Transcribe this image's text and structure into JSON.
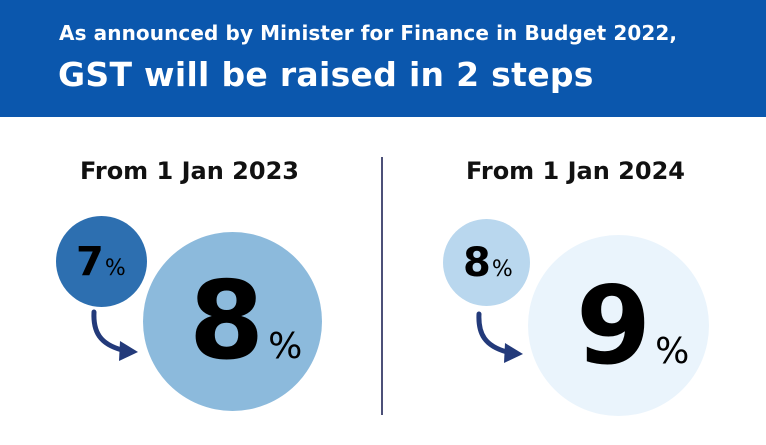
{
  "header": {
    "subtitle": "As announced by Minister for Finance in Budget 2022,",
    "title": "GST will be raised in 2 steps"
  },
  "steps": [
    {
      "label": "From 1 Jan 2023",
      "from_rate": "7",
      "to_rate": "8",
      "unit": "%"
    },
    {
      "label": "From 1 Jan 2024",
      "from_rate": "8",
      "to_rate": "9",
      "unit": "%"
    }
  ],
  "colors": {
    "header_bg": "#0b57ad",
    "step1_old_circle": "#2d6fb0",
    "step1_new_circle": "#8cbadc",
    "step2_old_circle": "#b9d7ee",
    "step2_new_circle": "#eaf4fc",
    "arrow": "#233a7a",
    "divider": "#4c5078"
  },
  "icons": {
    "arrow": "curved-arrow-right-icon"
  }
}
